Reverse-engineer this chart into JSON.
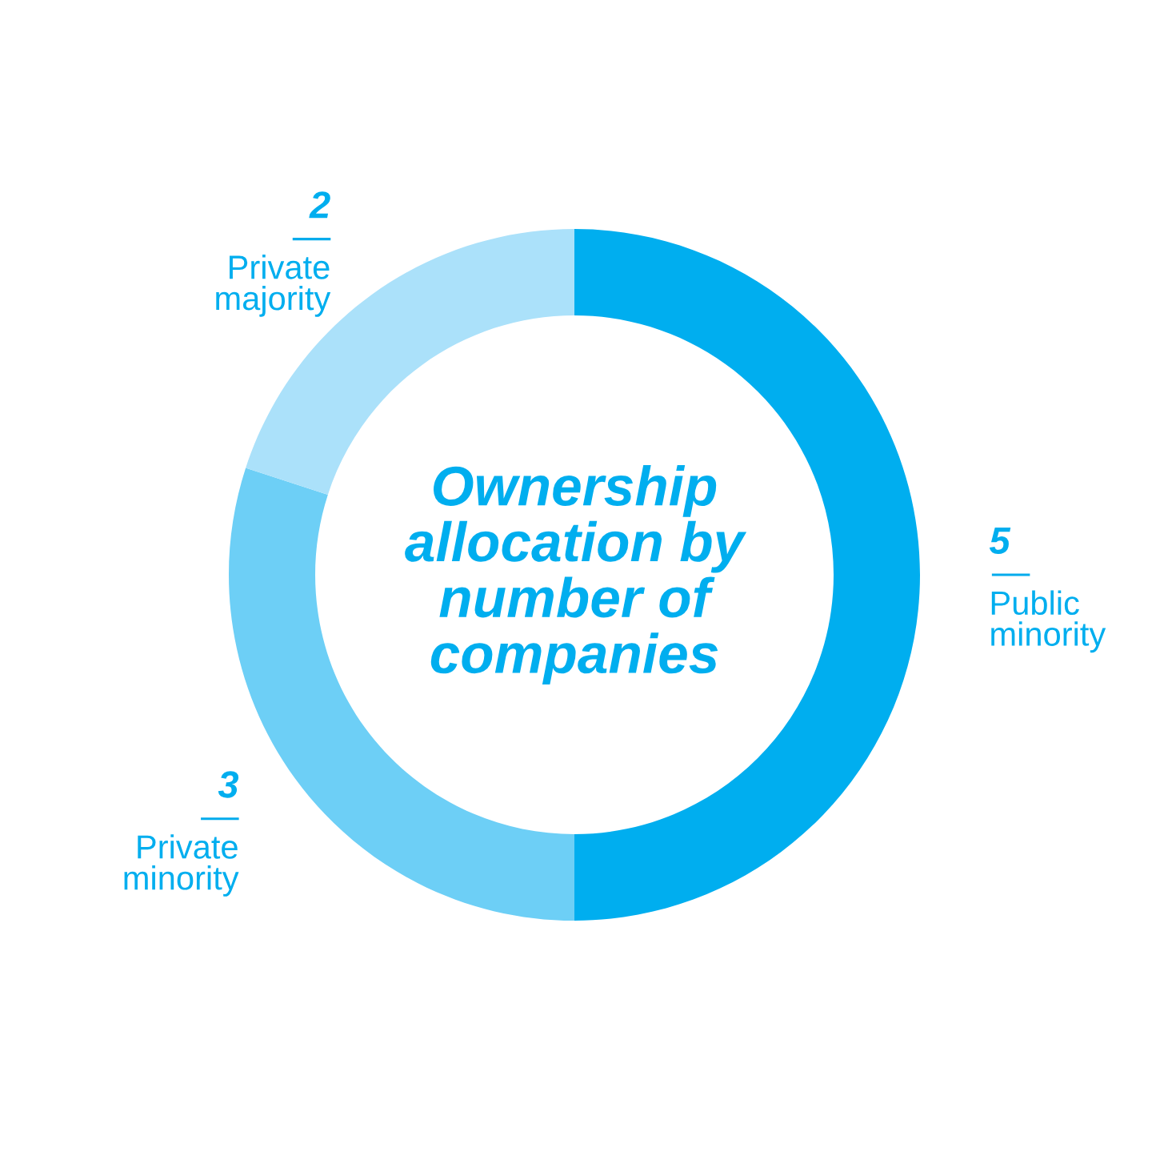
{
  "chart_data": {
    "type": "donut",
    "title": "Ownership\nallocation by\nnumber of\ncompanies",
    "categories": [
      "Public minority",
      "Private minority",
      "Private majority"
    ],
    "values": [
      5,
      3,
      2
    ],
    "colors": [
      "#00aeef",
      "#6dcff6",
      "#abe1fa"
    ],
    "data_labels": true
  }
}
